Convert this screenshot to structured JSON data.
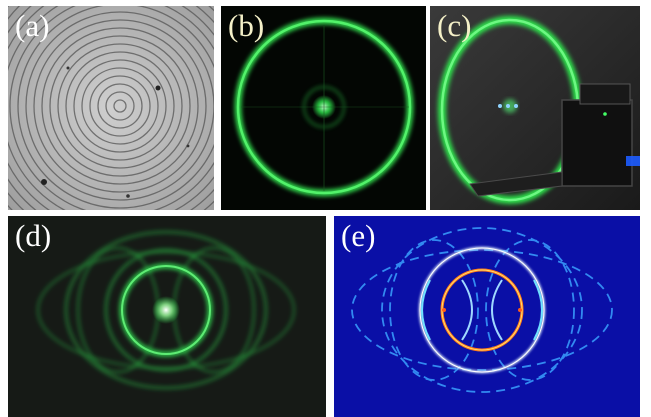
{
  "panels": {
    "a": {
      "label": "(a)",
      "label_color": "#ffffff"
    },
    "b": {
      "label": "(b)",
      "label_color": "#f4f0c8"
    },
    "c": {
      "label": "(c)",
      "label_color": "#f4f0c8"
    },
    "d": {
      "label": "(d)",
      "label_color": "#ffffff"
    },
    "e": {
      "label": "(e)",
      "label_color": "#ffffff"
    }
  },
  "colors": {
    "laser_green": "#33ff55",
    "simulation_background": "#0a0fa6",
    "simulation_ring": "#e8f8ff",
    "simulation_caustic": "#ff7a1a"
  }
}
